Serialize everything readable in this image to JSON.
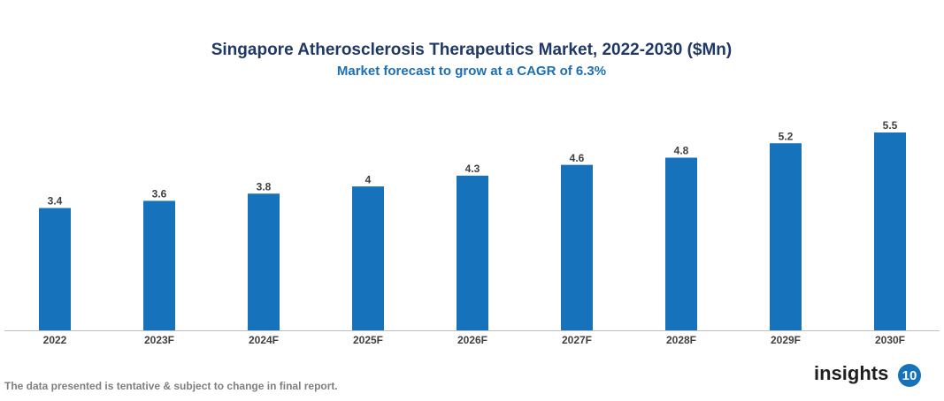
{
  "chart_data": {
    "type": "bar",
    "title": "Singapore Atherosclerosis Therapeutics Market, 2022-2030 ($Mn)",
    "subtitle": "Market forecast to grow at a CAGR of 6.3%",
    "categories": [
      "2022",
      "2023F",
      "2024F",
      "2025F",
      "2026F",
      "2027F",
      "2028F",
      "2029F",
      "2030F"
    ],
    "values": [
      3.4,
      3.6,
      3.8,
      4,
      4.3,
      4.6,
      4.8,
      5.2,
      5.5
    ],
    "color": "#1672ba"
  },
  "footer": {
    "note": "The data presented is tentative & subject to change in final report.",
    "logo_text": "insights",
    "logo_badge": "10"
  }
}
